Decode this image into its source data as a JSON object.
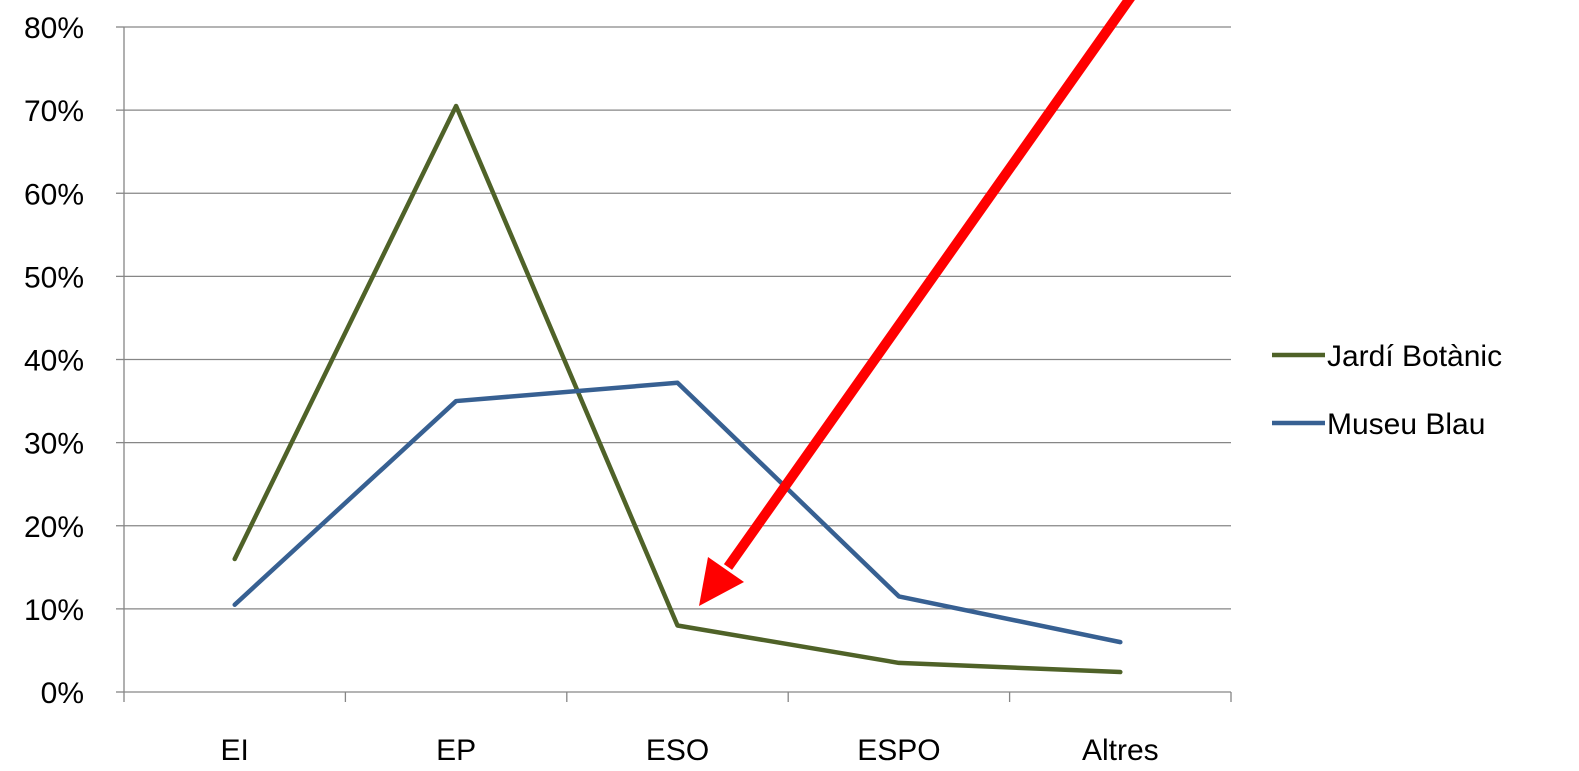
{
  "chart_data": {
    "type": "line",
    "categories": [
      "EI",
      "EP",
      "ESO",
      "ESPO",
      "Altres"
    ],
    "series": [
      {
        "name": "Jardí Botànic",
        "values": [
          16,
          70.5,
          8,
          3.5,
          2.4
        ],
        "color": "#4f6228"
      },
      {
        "name": "Museu Blau",
        "values": [
          10.5,
          35,
          37.2,
          11.5,
          6
        ],
        "color": "#376092"
      }
    ],
    "y_ticks": [
      "0%",
      "10%",
      "20%",
      "30%",
      "40%",
      "50%",
      "60%",
      "70%",
      "80%"
    ],
    "ylim": [
      0,
      80
    ],
    "grid": true,
    "legend_position": "right",
    "annotation": {
      "type": "arrow",
      "color": "#ff0000",
      "points_to": "ESO"
    }
  }
}
